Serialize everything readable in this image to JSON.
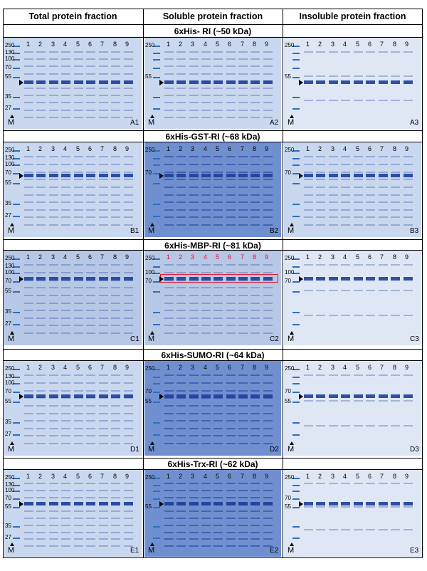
{
  "columns": [
    "Total protein fraction",
    "Soluble protein fraction",
    "Insoluble protein fraction"
  ],
  "marker_label": "M",
  "lane_numbers": [
    "1",
    "2",
    "3",
    "4",
    "5",
    "6",
    "7",
    "8",
    "9"
  ],
  "rows": [
    {
      "title": "6xHis- RI (~50 kDa)",
      "panels": [
        {
          "tag": "A1",
          "ladder": [
            "250",
            "130",
            "100",
            "70",
            "55",
            "35",
            "27"
          ],
          "tone": "light",
          "arrow_kda": "50"
        },
        {
          "tag": "A2",
          "ladder": [
            "250",
            "55"
          ],
          "tone": "light",
          "arrow_kda": "50"
        },
        {
          "tag": "A3",
          "ladder": [
            "250",
            "55"
          ],
          "tone": "pale",
          "arrow_kda": "50"
        }
      ]
    },
    {
      "title": "6xHis-GST-RI (~68 kDa)",
      "panels": [
        {
          "tag": "B1",
          "ladder": [
            "250",
            "130",
            "100",
            "70",
            "55",
            "35",
            "27"
          ],
          "tone": "light",
          "arrow_kda": "68"
        },
        {
          "tag": "B2",
          "ladder": [
            "250",
            "70"
          ],
          "tone": "dark",
          "arrow_kda": "68"
        },
        {
          "tag": "B3",
          "ladder": [
            "250",
            "70"
          ],
          "tone": "light",
          "arrow_kda": "68"
        }
      ]
    },
    {
      "title": "6xHis-MBP-RI (~81 kDa)",
      "panels": [
        {
          "tag": "C1",
          "ladder": [
            "250",
            "130",
            "100",
            "70",
            "55",
            "35",
            "27"
          ],
          "tone": "medium",
          "arrow_kda": "81"
        },
        {
          "tag": "C2",
          "ladder": [
            "250",
            "100",
            "70"
          ],
          "tone": "medium",
          "arrow_kda": "81",
          "red": true
        },
        {
          "tag": "C3",
          "ladder": [
            "250",
            "100",
            "70"
          ],
          "tone": "pale",
          "arrow_kda": "81"
        }
      ]
    },
    {
      "title": "6xHis-SUMO-RI (~64 kDa)",
      "panels": [
        {
          "tag": "D1",
          "ladder": [
            "250",
            "130",
            "100",
            "70",
            "55",
            "35",
            "27"
          ],
          "tone": "light",
          "arrow_kda": "64"
        },
        {
          "tag": "D2",
          "ladder": [
            "250",
            "70",
            "55"
          ],
          "tone": "dark",
          "arrow_kda": "64"
        },
        {
          "tag": "D3",
          "ladder": [
            "250",
            "70",
            "55"
          ],
          "tone": "pale",
          "arrow_kda": "64"
        }
      ]
    },
    {
      "title": "6xHis-Trx-RI (~62 kDa)",
      "panels": [
        {
          "tag": "E1",
          "ladder": [
            "250",
            "130",
            "100",
            "70",
            "55",
            "35",
            "27"
          ],
          "tone": "light",
          "arrow_kda": "62"
        },
        {
          "tag": "E2",
          "ladder": [
            "250",
            "55"
          ],
          "tone": "dark",
          "arrow_kda": "62"
        },
        {
          "tag": "E3",
          "ladder": [
            "250",
            "70",
            "55"
          ],
          "tone": "pale",
          "arrow_kda": "62"
        }
      ]
    }
  ],
  "colors": {
    "gel_light": "#c9d8ee",
    "gel_medium": "#b7c8e6",
    "gel_dark": "#6f8fcf",
    "gel_pale": "#dfe7f4",
    "band": "#1d3f9a",
    "marker": "#2f6fc0",
    "red": "#e0102a"
  }
}
